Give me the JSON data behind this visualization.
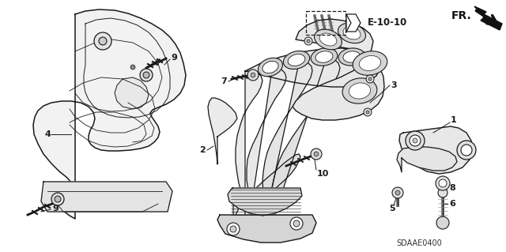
{
  "bg_color": "#ffffff",
  "line_color": "#1a1a1a",
  "label_E1010": "E-10-10",
  "label_FR": "FR.",
  "code": "SDAAE0400",
  "fig_w": 6.4,
  "fig_h": 3.19,
  "dpi": 100
}
